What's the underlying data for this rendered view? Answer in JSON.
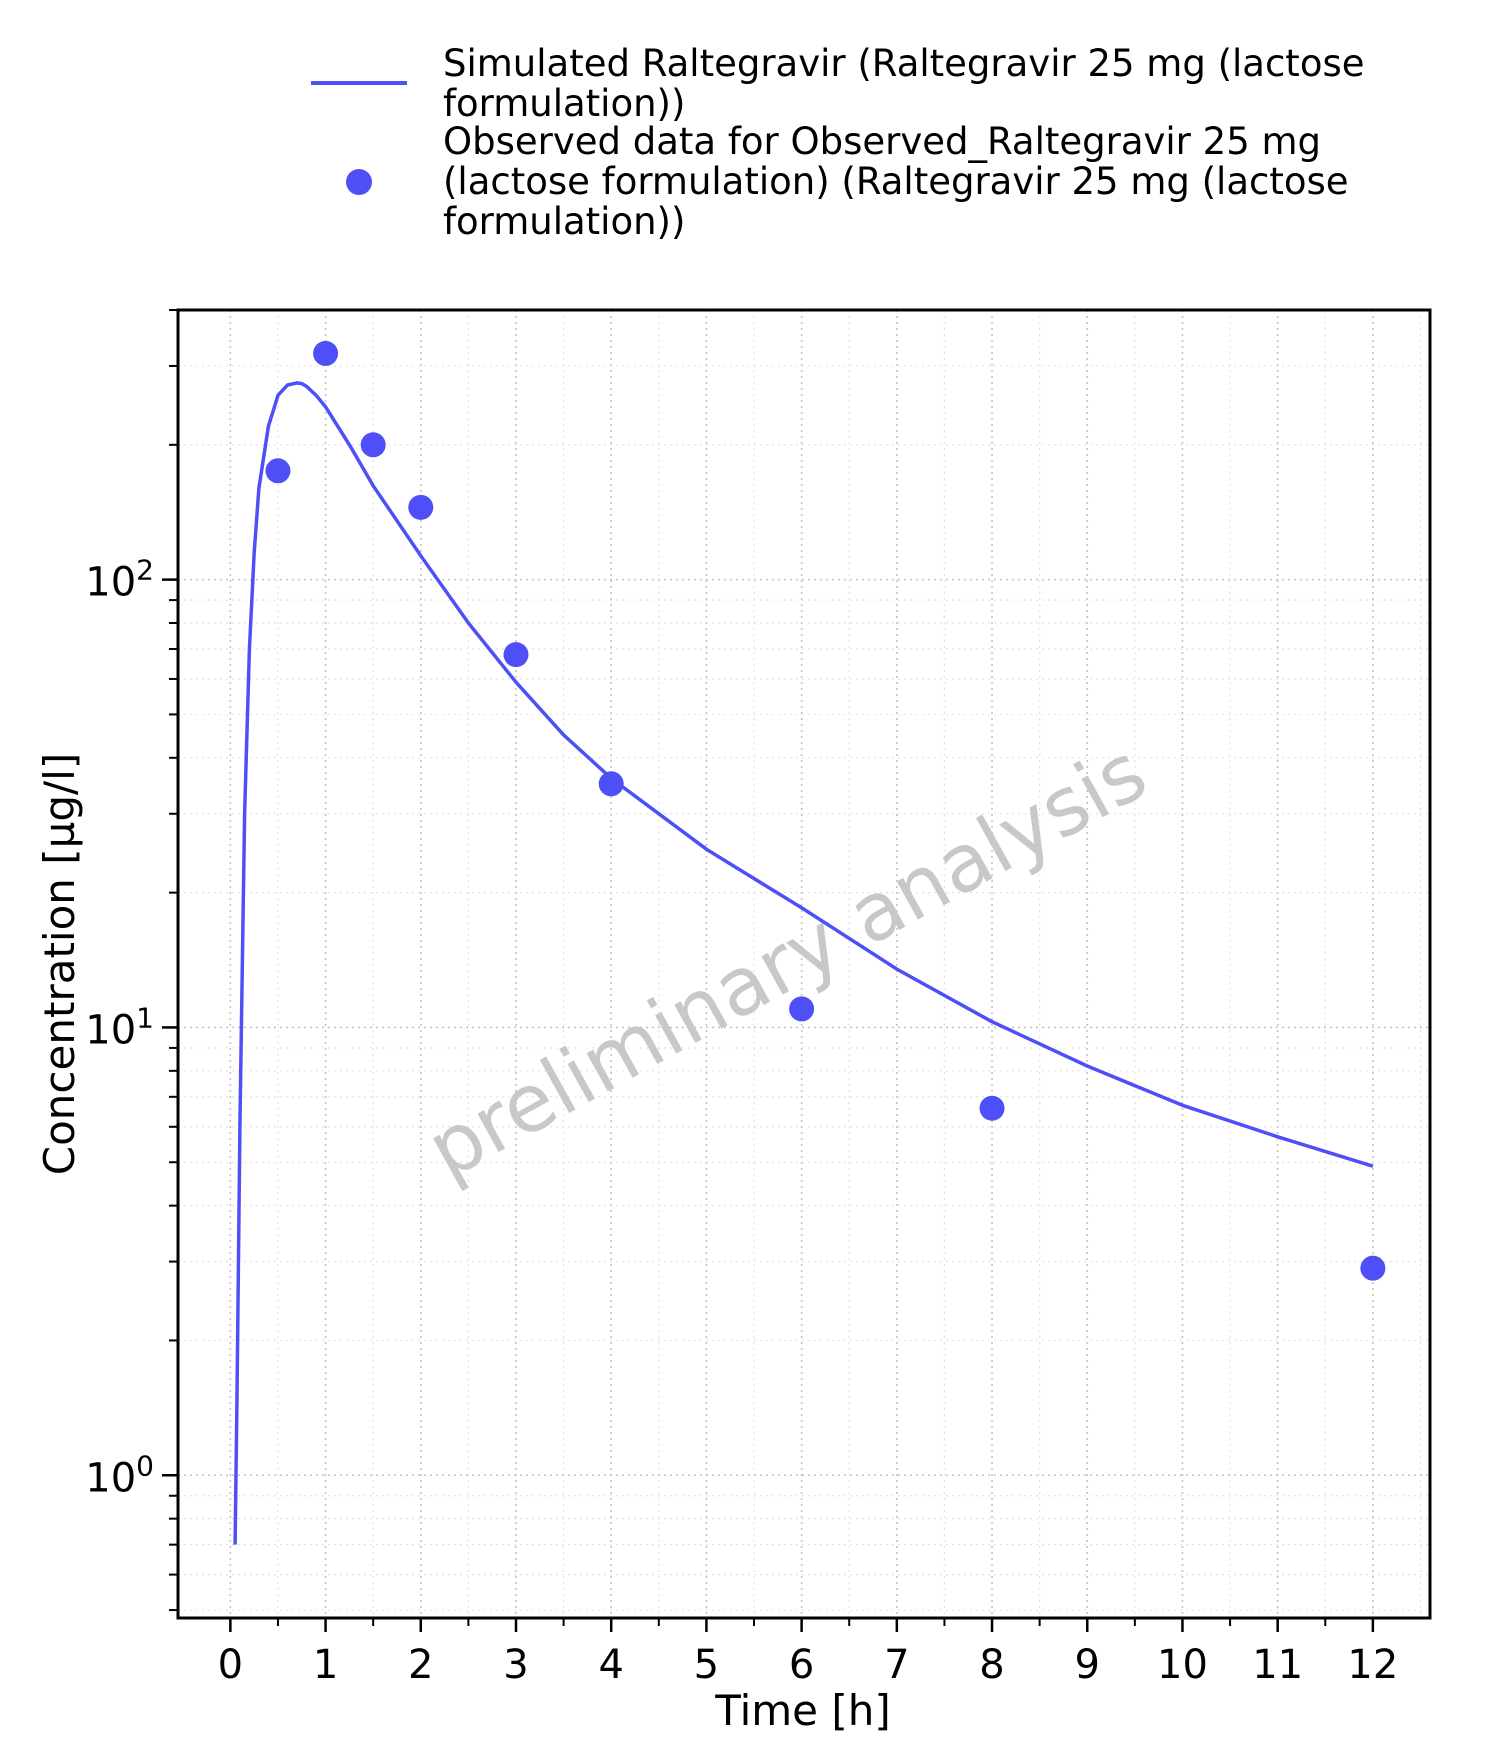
{
  "chart_data": {
    "type": "line",
    "xlabel": "Time [h]",
    "ylabel": "Concentration [µg/l]",
    "xlim": [
      -0.55,
      12.6
    ],
    "ylim": [
      0.48,
      400
    ],
    "yscale": "log",
    "x_ticks": [
      "0",
      "1",
      "2",
      "3",
      "4",
      "5",
      "6",
      "7",
      "8",
      "9",
      "10",
      "11",
      "12"
    ],
    "y_ticks": [
      {
        "base": "10",
        "exp": "0",
        "value": 1
      },
      {
        "base": "10",
        "exp": "1",
        "value": 10
      },
      {
        "base": "10",
        "exp": "2",
        "value": 100
      }
    ],
    "grid": true,
    "legend_position": "top",
    "watermark": "preliminary analysis",
    "series": [
      {
        "name": "Simulated Raltegravir (Raltegravir 25 mg (lactose formulation))",
        "kind": "line",
        "color": "#4f4ff7",
        "x": [
          0.05,
          0.07,
          0.1,
          0.15,
          0.2,
          0.25,
          0.3,
          0.4,
          0.5,
          0.6,
          0.7,
          0.75,
          0.8,
          0.9,
          1.0,
          1.25,
          1.5,
          2.0,
          2.5,
          3.0,
          3.5,
          4.0,
          5.0,
          6.0,
          7.0,
          8.0,
          9.0,
          10.0,
          11.0,
          12.0
        ],
        "y": [
          0.7,
          1.5,
          6.0,
          30,
          70,
          115,
          160,
          220,
          258,
          272,
          275,
          274,
          270,
          258,
          243,
          200,
          162,
          113,
          80,
          59,
          45,
          36,
          25,
          18.5,
          13.5,
          10.3,
          8.2,
          6.7,
          5.7,
          4.9
        ]
      },
      {
        "name": "Observed data for Observed_Raltegravir 25 mg (lactose formulation) (Raltegravir 25 mg (lactose formulation))",
        "kind": "scatter",
        "color": "#4f4ff7",
        "x": [
          0.5,
          1,
          1.5,
          2,
          3,
          4,
          6,
          8,
          12
        ],
        "y": [
          175,
          320,
          200,
          145,
          68,
          35,
          11,
          6.6,
          2.9
        ]
      }
    ],
    "legend": [
      {
        "lines": [
          "Simulated Raltegravir (Raltegravir 25 mg (lactose",
          "formulation))"
        ]
      },
      {
        "lines": [
          "Observed data for Observed_Raltegravir 25 mg",
          "(lactose formulation) (Raltegravir 25 mg (lactose",
          "formulation))"
        ]
      }
    ]
  }
}
